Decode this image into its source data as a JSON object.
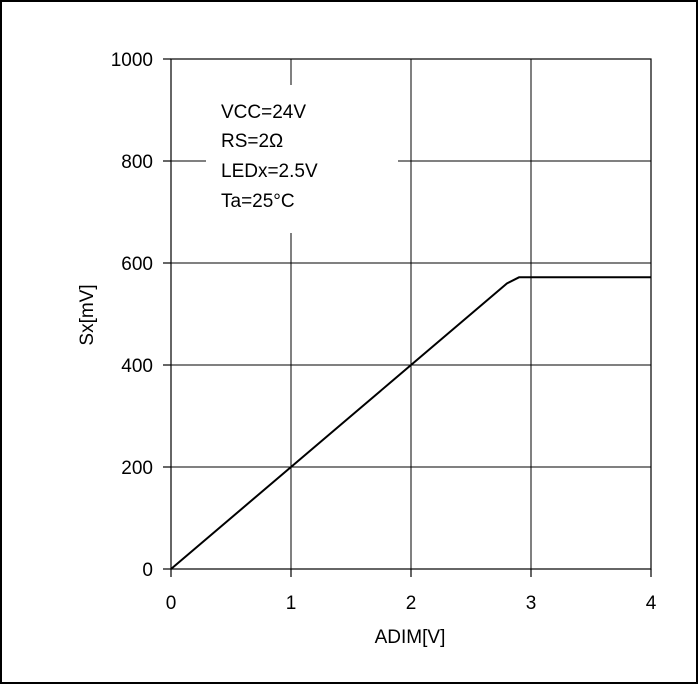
{
  "chart_data": {
    "type": "line",
    "title": "",
    "xlabel": "ADIM[V]",
    "ylabel": "Sx[mV]",
    "xlim": [
      0,
      4
    ],
    "ylim": [
      0,
      1000
    ],
    "xticks": [
      0,
      1,
      2,
      3,
      4
    ],
    "yticks": [
      0,
      200,
      400,
      600,
      800,
      1000
    ],
    "xtick_labels": [
      "0",
      "1",
      "2",
      "3",
      "4"
    ],
    "ytick_labels": [
      "0",
      "200",
      "400",
      "600",
      "800",
      "1000"
    ],
    "grid": true,
    "legend": "none",
    "annotations": [
      "VCC=24V",
      "RS=2Ω",
      "LEDx=2.5V",
      "Ta=25°C"
    ],
    "series": [
      {
        "x": [
          0,
          0.5,
          1.0,
          1.5,
          2.0,
          2.5,
          2.8,
          2.9,
          3.0,
          3.5,
          4.0
        ],
        "y": [
          0,
          100,
          200,
          300,
          400,
          500,
          560,
          572,
          572,
          572,
          572
        ],
        "color": "#000000"
      }
    ]
  }
}
